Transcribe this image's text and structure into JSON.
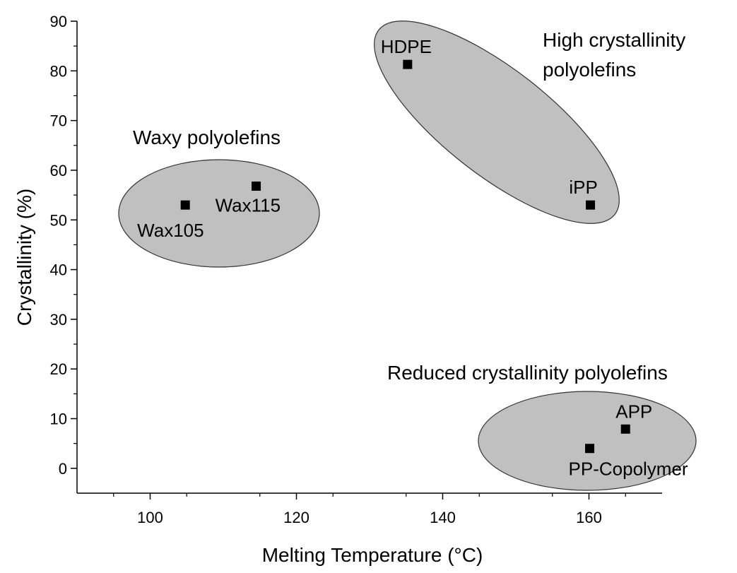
{
  "chart_data": {
    "type": "scatter",
    "title": "",
    "xlabel": "Melting Temperature (°C)",
    "ylabel": "Crystallinity (%)",
    "xlim": [
      90,
      170
    ],
    "ylim": [
      -5,
      90
    ],
    "xticks": [
      100,
      120,
      140,
      160
    ],
    "yticks": [
      0,
      10,
      20,
      30,
      40,
      50,
      60,
      70,
      80,
      90
    ],
    "grid": false,
    "points": [
      {
        "name": "Wax105",
        "x": 104.8,
        "y": 53
      },
      {
        "name": "Wax115",
        "x": 114.5,
        "y": 56.8
      },
      {
        "name": "HDPE",
        "x": 135.2,
        "y": 81.3
      },
      {
        "name": "iPP",
        "x": 160.2,
        "y": 53
      },
      {
        "name": "APP",
        "x": 165.0,
        "y": 7.9
      },
      {
        "name": "PP-Copolymer",
        "x": 160.1,
        "y": 4
      }
    ],
    "groups": [
      {
        "label": "Waxy polyolefins",
        "members": [
          "Wax105",
          "Wax115"
        ]
      },
      {
        "label": "High crystallinity polyolefins",
        "members": [
          "HDPE",
          "iPP"
        ]
      },
      {
        "label": "Reduced crystallinity polyolefins",
        "members": [
          "APP",
          "PP-Copolymer"
        ]
      }
    ]
  },
  "colors": {
    "ellipse_fill": "#c0c0c0",
    "ellipse_stroke": "#333333",
    "marker": "#000000",
    "axis": "#000000"
  }
}
